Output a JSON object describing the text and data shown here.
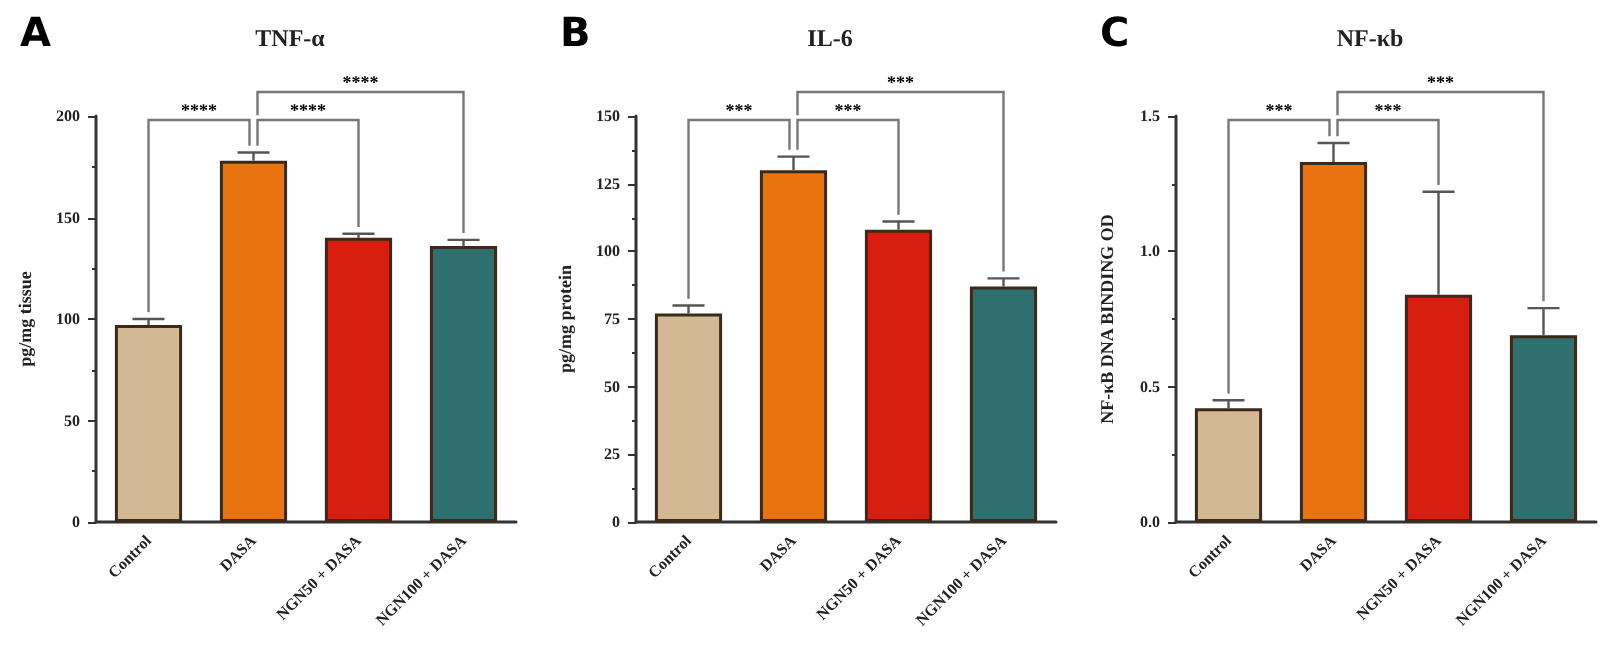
{
  "chart_data": [
    {
      "type": "bar",
      "title": "TNF-α",
      "ylabel": "pg/mg tissue",
      "categories": [
        "Control",
        "DASA",
        "NGN50 + DASA",
        "NGN100 + DASA"
      ],
      "values": [
        97,
        178,
        140,
        136
      ],
      "colors": [
        "#d4b896",
        "#e8730f",
        "#d81e0f",
        "#2e7070"
      ],
      "errors": [
        [
          97,
          100
        ],
        [
          178,
          182
        ],
        [
          140,
          142
        ],
        [
          136,
          139
        ]
      ],
      "ylim": [
        0,
        200
      ],
      "yticks": [
        0,
        50,
        100,
        150,
        200
      ],
      "annotations": [
        "A",
        "****",
        "****",
        "****"
      ]
    },
    {
      "type": "bar",
      "title": "IL-6",
      "ylabel": "pg/mg protein",
      "categories": [
        "Control",
        "DASA",
        "NGN50 + DASA",
        "NGN100 + DASA"
      ],
      "values": [
        77,
        130,
        108,
        87
      ],
      "colors": [
        "#d4b896",
        "#e8730f",
        "#d81e0f",
        "#2e7070"
      ],
      "errors": [
        [
          77,
          80
        ],
        [
          130,
          135
        ],
        [
          108,
          111
        ],
        [
          87,
          90
        ]
      ],
      "ylim": [
        0,
        150
      ],
      "yticks": [
        0,
        25,
        50,
        75,
        100,
        125,
        150
      ],
      "annotations": [
        "B",
        "***",
        "***",
        "***"
      ]
    },
    {
      "type": "bar",
      "title": "NF-κb",
      "ylabel": "NF-κB DNA BINDING OD",
      "categories": [
        "Control",
        "DASA",
        "NGN50 + DASA",
        "NGN100 + DASA"
      ],
      "values": [
        0.42,
        1.33,
        0.84,
        0.69
      ],
      "colors": [
        "#d4b896",
        "#e8730f",
        "#d81e0f",
        "#2e7070"
      ],
      "errors": [
        [
          0.42,
          0.45
        ],
        [
          1.33,
          1.4
        ],
        [
          0.84,
          1.22
        ],
        [
          0.69,
          0.79
        ]
      ],
      "ylim": [
        0,
        1.5
      ],
      "yticks": [
        {
          "value": 0,
          "label": "0.0"
        },
        {
          "value": 0.5,
          "label": "0.5"
        },
        {
          "value": 1,
          "label": "1.0"
        },
        {
          "value": 1.5,
          "label": "1.5"
        }
      ],
      "annotations": [
        "C",
        "***",
        "***",
        "***"
      ]
    }
  ]
}
